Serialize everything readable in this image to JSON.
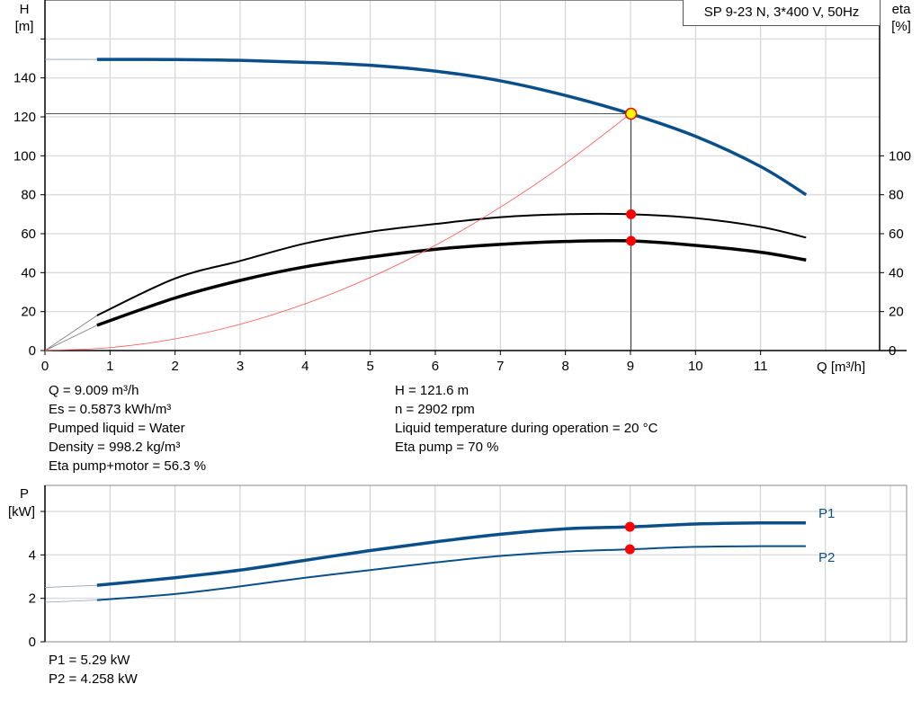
{
  "chart_data": [
    {
      "type": "line",
      "title": "SP 9-23 N, 3*400 V, 50Hz",
      "xlabel": "Q [m³/h]",
      "ylabel": "H\n[m]",
      "y2label": "eta\n[%]",
      "xlim": [
        0,
        12.83
      ],
      "ylim": [
        0,
        180
      ],
      "y2lim": [
        0,
        180
      ],
      "xticks": [
        0,
        1,
        2,
        3,
        4,
        5,
        6,
        7,
        8,
        9,
        10,
        11
      ],
      "yticks": [
        0,
        20,
        40,
        60,
        80,
        100,
        120,
        140
      ],
      "y2ticks": [
        0,
        20,
        40,
        60,
        80,
        100
      ],
      "grid": true,
      "series": [
        {
          "id": "H",
          "color": "#0b4f8a",
          "x": [
            0.8,
            2,
            3,
            4,
            5,
            6,
            7,
            8,
            9,
            10,
            11,
            11.7
          ],
          "y": [
            149.5,
            149.4,
            149,
            148,
            146.5,
            143.5,
            138.5,
            131,
            121.6,
            110,
            94.5,
            80
          ],
          "extrapolated_from": [
            0,
            149.5
          ]
        },
        {
          "id": "eta_pump",
          "color": "#000000",
          "axis": "y2",
          "x": [
            0.8,
            2,
            3,
            4,
            5,
            6,
            7,
            8,
            9,
            10,
            11,
            11.7
          ],
          "y": [
            18,
            37,
            46,
            55,
            61,
            65,
            68.5,
            70,
            70,
            68,
            63.5,
            58
          ],
          "extrapolated_from": [
            0,
            0
          ]
        },
        {
          "id": "eta_total",
          "color": "#000000",
          "axis": "y2",
          "x": [
            0.8,
            2,
            3,
            4,
            5,
            6,
            7,
            8,
            9,
            10,
            11,
            11.7
          ],
          "y": [
            13,
            27,
            36,
            43,
            48,
            52,
            54.5,
            56,
            56.3,
            54,
            50.5,
            46.5
          ],
          "extrapolated_from": [
            0,
            0
          ]
        },
        {
          "id": "system",
          "color": "#ff5050",
          "x": [
            0,
            1,
            2,
            3,
            4,
            5,
            6,
            7,
            8,
            9
          ],
          "y": [
            0,
            1.5,
            6,
            13.5,
            24,
            37.5,
            54,
            73.6,
            96.1,
            121.6
          ]
        }
      ],
      "duty_point": {
        "Q": 9.009,
        "H": 121.6,
        "eta_pump": 70,
        "eta_total": 56.3
      }
    },
    {
      "type": "line",
      "xlabel": "",
      "ylabel": "P\n[kW]",
      "xlim": [
        0,
        13.25
      ],
      "ylim": [
        0,
        7.2
      ],
      "yticks": [
        0,
        2,
        4,
        6
      ],
      "ytick_labels": [
        "0",
        "2",
        "4",
        ""
      ],
      "grid": true,
      "series": [
        {
          "name": "P1",
          "color": "#0b4f8a",
          "x": [
            0.8,
            2,
            3,
            4,
            5,
            6,
            7,
            8,
            9,
            10,
            11,
            11.7
          ],
          "y": [
            2.6,
            2.95,
            3.3,
            3.75,
            4.2,
            4.6,
            4.95,
            5.2,
            5.29,
            5.42,
            5.47,
            5.47
          ],
          "extrapolated_from": [
            0,
            2.5
          ]
        },
        {
          "name": "P2",
          "color": "#0b4f8a",
          "x": [
            0.8,
            2,
            3,
            4,
            5,
            6,
            7,
            8,
            9,
            10,
            11,
            11.7
          ],
          "y": [
            1.92,
            2.2,
            2.55,
            2.95,
            3.3,
            3.65,
            3.95,
            4.15,
            4.258,
            4.37,
            4.4,
            4.4
          ],
          "extrapolated_from": [
            0,
            1.82
          ]
        }
      ],
      "duty_point": {
        "Q": 9.009,
        "P1": 5.29,
        "P2": 4.258
      }
    }
  ],
  "labels": {
    "h_axis": "H",
    "h_unit": "[m]",
    "eta_axis": "eta",
    "eta_unit": "[%]",
    "q_axis": "Q [m³/h]",
    "p_axis": "P",
    "p_unit": "[kW]",
    "p1": "P1",
    "p2": "P2",
    "title": "SP 9-23 N, 3*400 V, 50Hz"
  },
  "info_left": [
    "Q = 9.009 m³/h",
    "Es = 0.5873 kWh/m³",
    "Pumped liquid = Water",
    "Density = 998.2 kg/m³",
    "Eta pump+motor = 56.3 %"
  ],
  "info_right": [
    "H = 121.6 m",
    "n = 2902 rpm",
    "Liquid temperature during operation = 20 °C",
    "Eta pump = 70 %"
  ],
  "info_power": [
    "P1 = 5.29 kW",
    "P2 = 4.258 kW"
  ]
}
